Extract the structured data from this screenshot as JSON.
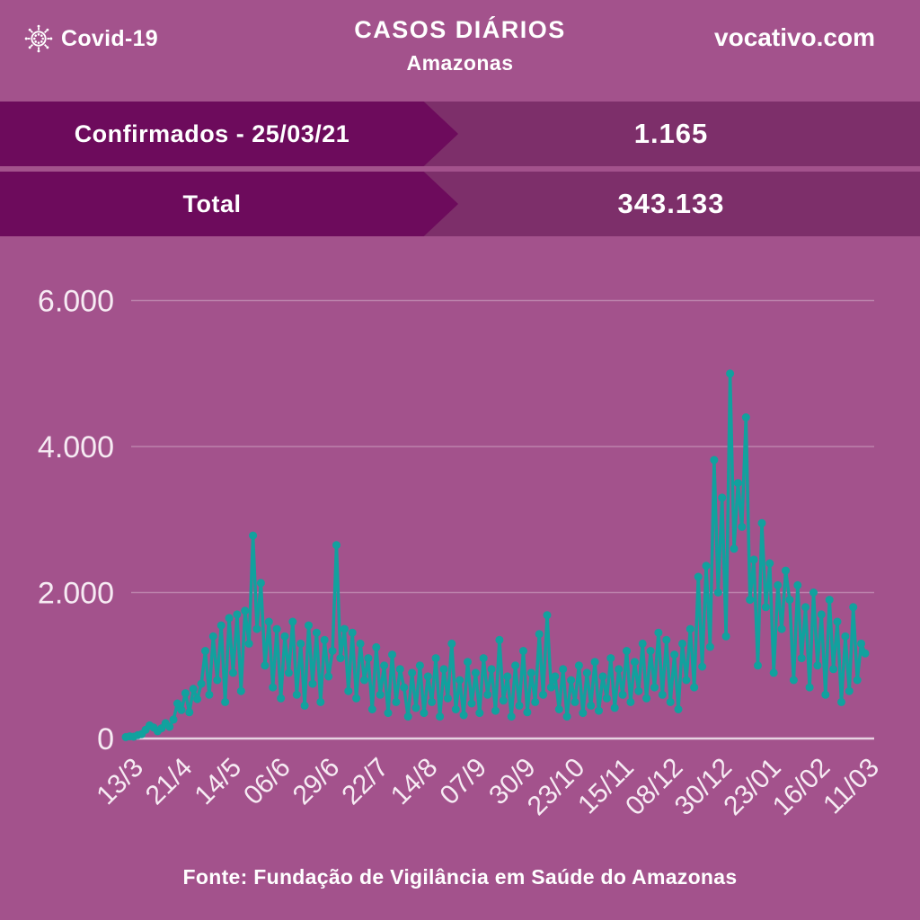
{
  "header": {
    "brand": "Covid-19",
    "title": "CASOS DIÁRIOS",
    "subtitle": "Amazonas",
    "site": "vocativo.com"
  },
  "stats": [
    {
      "label": "Confirmados - 25/03/21",
      "value": "1.165"
    },
    {
      "label": "Total",
      "value": "343.133"
    }
  ],
  "footer": "Fonte: Fundação de Vigilância em Saúde do Amazonas",
  "colors": {
    "background": "#a3528c",
    "banner_dark": "#6d0b5c",
    "banner_strip": "#7d2f6a",
    "series_teal": "#11a19e",
    "grid_line": "rgba(255,255,255,0.28)",
    "axis_line": "rgba(255,255,255,0.75)",
    "tick_text": "#f6ebf3",
    "text": "#ffffff"
  },
  "chart_data": {
    "type": "line",
    "title": "CASOS DIÁRIOS",
    "subtitle": "Amazonas",
    "xlabel": "",
    "ylabel": "",
    "ylim": [
      0,
      6500
    ],
    "grid": true,
    "legend": "none",
    "marker": "circle",
    "y_ticks": [
      0,
      2000,
      4000,
      6000
    ],
    "y_tick_labels": [
      "0",
      "2.000",
      "4.000",
      "6.000"
    ],
    "x_tick_labels": [
      "13/3",
      "21/4",
      "14/5",
      "06/6",
      "29/6",
      "22/7",
      "14/8",
      "07/9",
      "30/9",
      "23/10",
      "15/11",
      "08/12",
      "30/12",
      "23/01",
      "16/02",
      "11/03"
    ],
    "highlights": {
      "last_value": 1165,
      "max_value": 5000,
      "first_wave_peak": 2780,
      "june_peak": 2650,
      "second_wave_peak": 5000
    },
    "series": [
      {
        "name": "casos diários",
        "color": "#11a19e",
        "values": [
          20,
          30,
          25,
          45,
          60,
          120,
          180,
          150,
          100,
          140,
          210,
          160,
          260,
          480,
          390,
          620,
          360,
          680,
          540,
          750,
          1200,
          600,
          1400,
          800,
          1550,
          500,
          1650,
          900,
          1700,
          650,
          1750,
          1300,
          2780,
          1500,
          2130,
          1000,
          1600,
          700,
          1500,
          550,
          1400,
          900,
          1600,
          600,
          1300,
          450,
          1550,
          750,
          1450,
          500,
          1350,
          850,
          1200,
          2650,
          1100,
          1500,
          650,
          1450,
          550,
          1300,
          800,
          1100,
          400,
          1250,
          600,
          1000,
          350,
          1150,
          500,
          950,
          700,
          300,
          900,
          420,
          1000,
          350,
          850,
          500,
          1100,
          300,
          950,
          550,
          1300,
          400,
          800,
          320,
          1050,
          480,
          900,
          350,
          1100,
          600,
          950,
          380,
          1350,
          520,
          850,
          300,
          1000,
          450,
          1200,
          360,
          900,
          500,
          1430,
          600,
          1690,
          700,
          850,
          400,
          950,
          300,
          800,
          500,
          1000,
          350,
          900,
          450,
          1050,
          380,
          850,
          550,
          1100,
          420,
          950,
          600,
          1200,
          500,
          1050,
          650,
          1300,
          550,
          1200,
          700,
          1450,
          600,
          1350,
          500,
          1150,
          400,
          1300,
          800,
          1500,
          700,
          2215,
          985,
          2365,
          1255,
          3815,
          2000,
          3300,
          1400,
          5000,
          2600,
          3500,
          2900,
          4400,
          1900,
          2450,
          1000,
          2950,
          1800,
          2400,
          900,
          2100,
          1500,
          2300,
          1900,
          800,
          2100,
          1100,
          1800,
          700,
          2000,
          1000,
          1700,
          600,
          1900,
          950,
          1600,
          500,
          1400,
          650,
          1800,
          800,
          1300,
          1165
        ]
      }
    ]
  }
}
